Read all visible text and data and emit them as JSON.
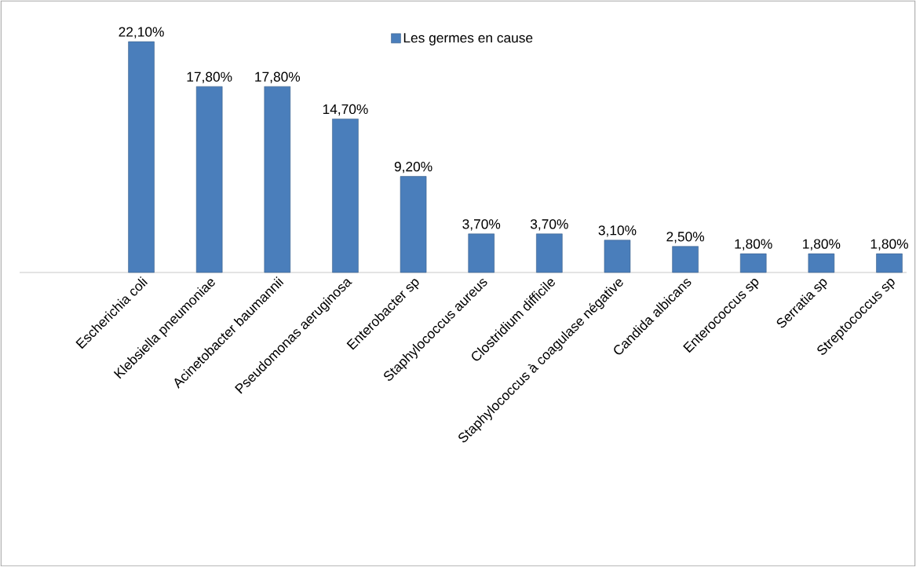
{
  "chart_data": {
    "type": "bar",
    "categories": [
      "Escherichia coli",
      "Klebsiella pneumoniae",
      "Acinetobacter baumannii",
      "Pseudomonas aeruginosa",
      "Enterobacter sp",
      "Staphylococcus aureus",
      "Clostridium difficile",
      "Staphylococcus à coagulase négative",
      "Candida albicans",
      "Enterococcus sp",
      "Serratia sp",
      "Streptococcus sp"
    ],
    "series": [
      {
        "name": "Les germes en cause",
        "color": "#4a7ebb",
        "values": [
          22.1,
          17.8,
          17.8,
          14.7,
          9.2,
          3.7,
          3.7,
          3.1,
          2.5,
          1.8,
          1.8,
          1.8
        ],
        "value_labels": [
          "22,10%",
          "17,80%",
          "17,80%",
          "14,70%",
          "9,20%",
          "3,70%",
          "3,70%",
          "3,10%",
          "2,50%",
          "1,80%",
          "1,80%",
          "1,80%"
        ]
      }
    ],
    "legend": "top"
  }
}
